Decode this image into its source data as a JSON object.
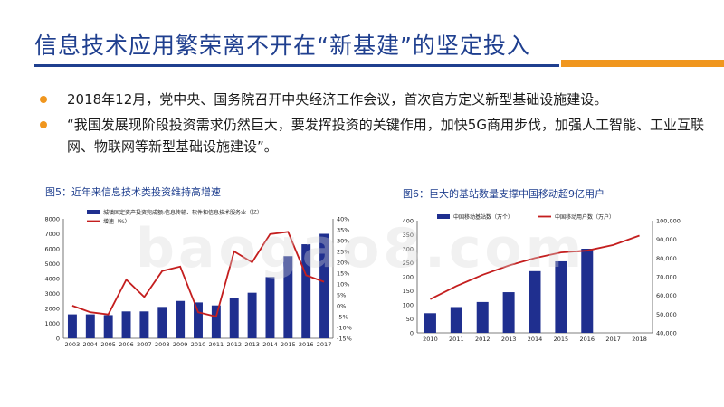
{
  "slide": {
    "title": "信息技术应用繁荣离不开在“新基建”的坚定投入",
    "bullets": [
      "2018年12月，党中央、国务院召开中央经济工作会议，首次官方定义新型基础设施建设。",
      "“我国发展现阶段投资需求仍然巨大，要发挥投资的关键作用，加快5G商用步伐，加强人工智能、工业互联网、物联网等新型基础设施建设”。"
    ],
    "watermark": "baogao8.com",
    "colors": {
      "title": "#1f3f8f",
      "accent": "#f0961e",
      "bar": "#1f2f8f",
      "line": "#c41e1e"
    }
  },
  "chart_data": [
    {
      "type": "bar",
      "caption": "图5：近年来信息技术类投资维持高增速",
      "categories": [
        "2003",
        "2004",
        "2005",
        "2006",
        "2007",
        "2008",
        "2009",
        "2010",
        "2011",
        "2012",
        "2013",
        "2014",
        "2015",
        "2016",
        "2017"
      ],
      "series": [
        {
          "name": "城镇固定资产投资完成额:信息传输、软件和信息技术服务业（亿）",
          "kind": "bar",
          "axis": "left",
          "values": [
            1600,
            1600,
            1550,
            1800,
            1800,
            2100,
            2500,
            2400,
            2200,
            2700,
            3050,
            4100,
            5500,
            6300,
            7000
          ]
        },
        {
          "name": "增速（%）",
          "kind": "line",
          "axis": "right",
          "values": [
            0,
            -3,
            -4,
            12,
            4,
            16,
            18,
            -3,
            -5,
            25,
            20,
            33,
            34,
            14,
            11
          ]
        }
      ],
      "ylim": [
        0,
        8000
      ],
      "yticks": [
        "0",
        "1000",
        "2000",
        "3000",
        "4000",
        "5000",
        "6000",
        "7000",
        "8000"
      ],
      "y2lim": [
        -15,
        40
      ],
      "y2ticks": [
        "-15%",
        "-10%",
        "-5%",
        "0%",
        "5%",
        "10%",
        "15%",
        "20%",
        "25%",
        "30%",
        "35%",
        "40%"
      ]
    },
    {
      "type": "bar",
      "caption": "图6：巨大的基站数量支撑中国移动超9亿用户",
      "categories": [
        "2010",
        "2011",
        "2012",
        "2013",
        "2014",
        "2015",
        "2016",
        "2017",
        "2018"
      ],
      "series": [
        {
          "name": "中国移动基站数（万个）",
          "kind": "bar",
          "axis": "left",
          "values": [
            70,
            92,
            110,
            145,
            220,
            255,
            300,
            null,
            null
          ]
        },
        {
          "name": "中国移动用户数（万户）",
          "kind": "line",
          "axis": "right",
          "values": [
            58000,
            65000,
            71000,
            76000,
            80000,
            83000,
            84000,
            87000,
            92000
          ]
        }
      ],
      "ylim": [
        0,
        400
      ],
      "yticks": [
        "0",
        "50",
        "100",
        "150",
        "200",
        "250",
        "300",
        "350",
        "400"
      ],
      "y2lim": [
        40000,
        100000
      ],
      "y2ticks": [
        "40,000",
        "50,000",
        "60,000",
        "70,000",
        "80,000",
        "90,000",
        "100,000"
      ]
    }
  ]
}
